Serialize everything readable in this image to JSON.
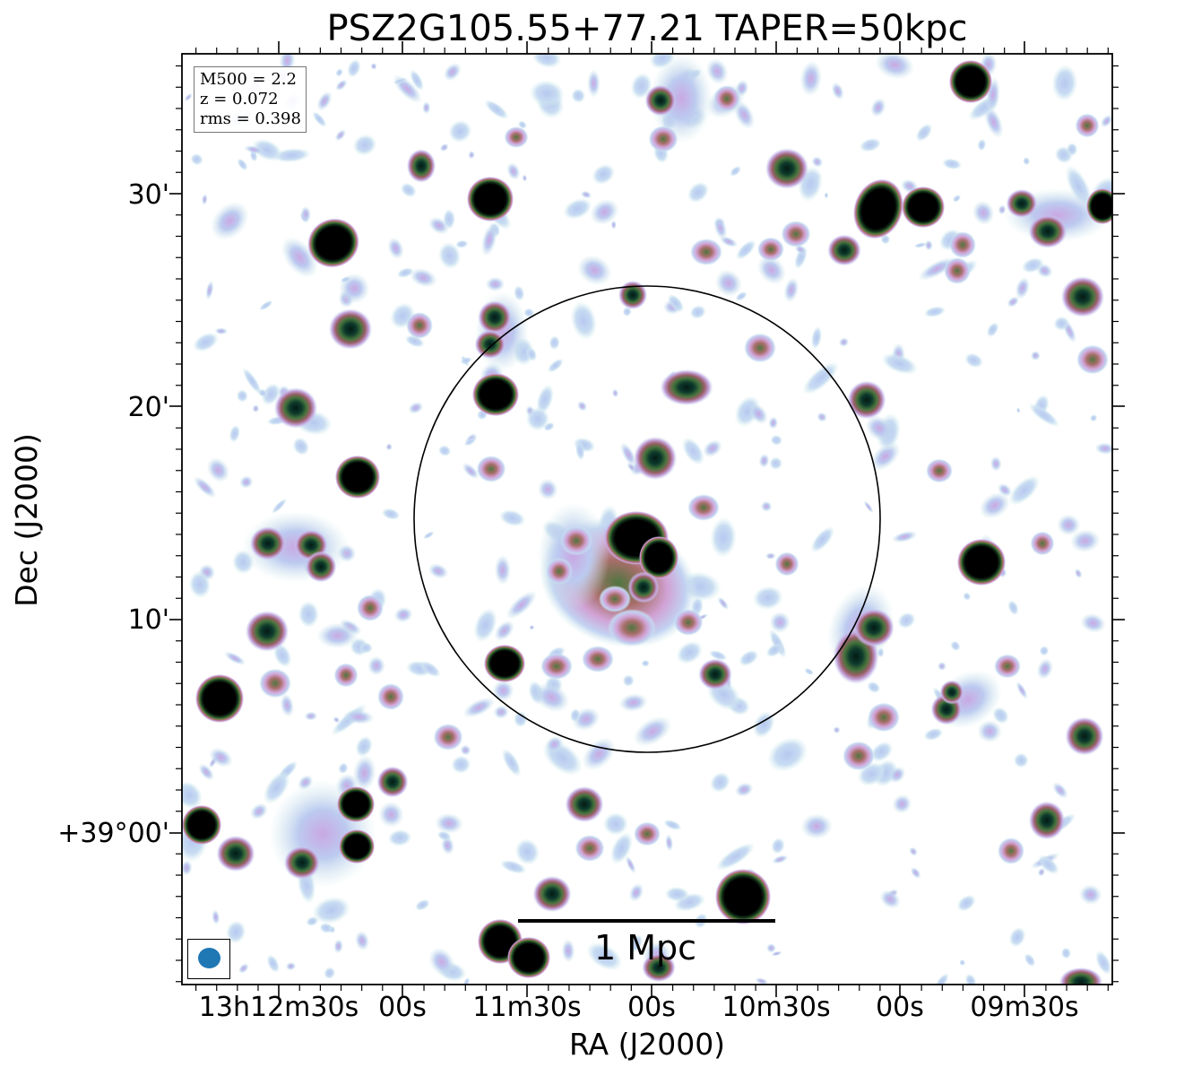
{
  "chart_data": {
    "type": "heatmap",
    "title": "PSZ2G105.55+77.21 TAPER=50kpc",
    "xlabel": "RA (J2000)",
    "ylabel": "Dec (J2000)",
    "x_tick_labels": [
      "13h12m30s",
      "00s",
      "11m30s",
      "00s",
      "10m30s",
      "00s",
      "09m30s"
    ],
    "y_tick_labels": [
      "30'",
      "20'",
      "10'",
      "+39°00'"
    ],
    "info": {
      "lines": [
        "M500 = 2.2",
        "z = 0.072",
        "rms = 0.398"
      ],
      "m500": 2.2,
      "z": 0.072,
      "rms": 0.398
    },
    "scalebar": {
      "label": "1 Mpc"
    },
    "circle": "R500 aperture centered on cluster",
    "colormap": "cubehelix_r (white → light blue → violet → pink → green → black)",
    "beam": {
      "color": "#1f77b4",
      "shape": "circle",
      "location": "bottom-left"
    },
    "grid": false
  }
}
